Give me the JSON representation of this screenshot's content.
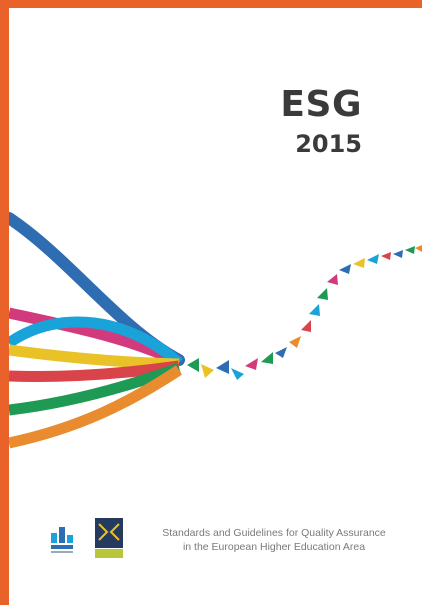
{
  "cover": {
    "title": "ESG",
    "year": "2015",
    "subtitle_line1": "Standards and Guidelines for Quality Assurance",
    "subtitle_line2": "in the European Higher Education Area"
  },
  "colors": {
    "border": "#e8622a",
    "text": "#3a3a3a",
    "ribbon_blue": "#2f6db3",
    "ribbon_cyan": "#1aa3d9",
    "ribbon_magenta": "#d23a7e",
    "ribbon_yellow": "#e9c227",
    "ribbon_red": "#d9434a",
    "ribbon_green": "#1f9a55",
    "ribbon_orange": "#e88c2f"
  },
  "logos": [
    "enqa-logo",
    "esu-logo"
  ]
}
